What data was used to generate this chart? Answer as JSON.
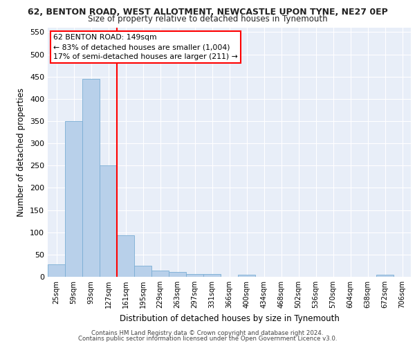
{
  "title": "62, BENTON ROAD, WEST ALLOTMENT, NEWCASTLE UPON TYNE, NE27 0EP",
  "subtitle": "Size of property relative to detached houses in Tynemouth",
  "xlabel": "Distribution of detached houses by size in Tynemouth",
  "ylabel": "Number of detached properties",
  "bin_labels": [
    "25sqm",
    "59sqm",
    "93sqm",
    "127sqm",
    "161sqm",
    "195sqm",
    "229sqm",
    "263sqm",
    "297sqm",
    "331sqm",
    "366sqm",
    "400sqm",
    "434sqm",
    "468sqm",
    "502sqm",
    "536sqm",
    "570sqm",
    "604sqm",
    "638sqm",
    "672sqm",
    "706sqm"
  ],
  "bar_values": [
    28,
    350,
    445,
    250,
    93,
    25,
    14,
    11,
    7,
    6,
    0,
    5,
    0,
    0,
    0,
    0,
    0,
    0,
    0,
    5,
    0
  ],
  "bar_color": "#b8d0ea",
  "bar_edge_color": "#7aadd4",
  "red_line_x": 4.0,
  "annotation_text": "62 BENTON ROAD: 149sqm\n← 83% of detached houses are smaller (1,004)\n17% of semi-detached houses are larger (211) →",
  "ylim": [
    0,
    560
  ],
  "yticks": [
    0,
    50,
    100,
    150,
    200,
    250,
    300,
    350,
    400,
    450,
    500,
    550
  ],
  "background_color": "#e8eef8",
  "grid_color": "#ffffff",
  "footer_line1": "Contains HM Land Registry data © Crown copyright and database right 2024.",
  "footer_line2": "Contains public sector information licensed under the Open Government Licence v3.0."
}
